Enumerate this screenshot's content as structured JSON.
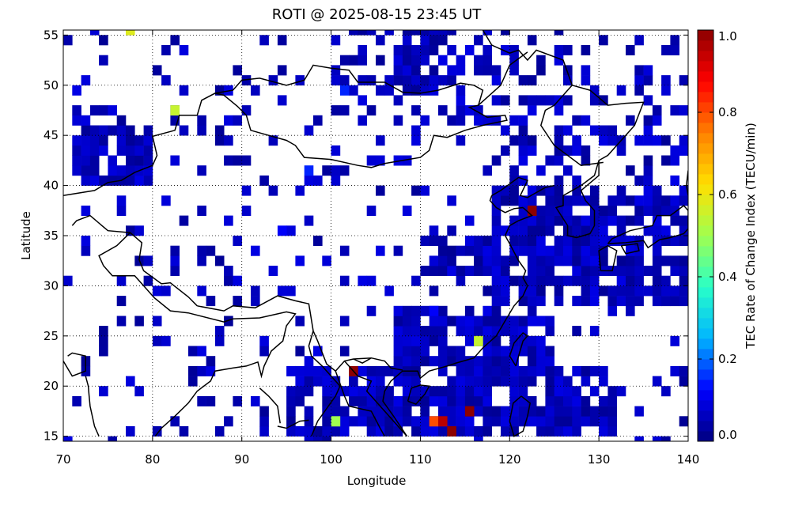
{
  "title": "ROTI @ 2025-08-15 23:45 UT",
  "chart_data": {
    "type": "heatmap",
    "title": "ROTI @ 2025-08-15 23:45 UT",
    "xlabel": "Longitude",
    "ylabel": "Latitude",
    "xlim": [
      70,
      140
    ],
    "ylim": [
      14.5,
      55.5
    ],
    "xticks": [
      70,
      80,
      90,
      100,
      110,
      120,
      130,
      140
    ],
    "yticks": [
      15,
      20,
      25,
      30,
      35,
      40,
      45,
      50,
      55
    ],
    "grid": true,
    "cell_size_deg": 1,
    "colorbar": {
      "label": "TEC Rate of Change Index (TECU/min)",
      "range": [
        0.0,
        1.0
      ],
      "ticks": [
        "0.0",
        "0.2",
        "0.4",
        "0.6",
        "0.8",
        "1.0"
      ],
      "colormap": "rainbow",
      "placement": "right"
    },
    "colormap_stops": [
      "#00007f",
      "#0000ff",
      "#00b4ff",
      "#28ffc8",
      "#a0ff50",
      "#ffe000",
      "#ff8000",
      "#ff0000",
      "#8c0000"
    ],
    "coastline_color": "#000000",
    "background_value_regions": [
      {
        "lon": [
          95,
          132
        ],
        "lat": [
          15,
          22
        ],
        "value": 0.04
      },
      {
        "lon": [
          107,
          125
        ],
        "lat": [
          22,
          28
        ],
        "value": 0.04
      },
      {
        "lon": [
          118,
          140
        ],
        "lat": [
          28,
          40
        ],
        "value": 0.03
      },
      {
        "lon": [
          71,
          80
        ],
        "lat": [
          40,
          46
        ],
        "value": 0.03
      },
      {
        "lon": [
          110,
          120
        ],
        "lat": [
          31,
          35
        ],
        "value": 0.04
      }
    ],
    "notable_cells": [
      {
        "lon": 77.5,
        "lat": 55,
        "value": 0.58
      },
      {
        "lon": 82.5,
        "lat": 47.5,
        "value": 0.55
      },
      {
        "lon": 122.5,
        "lat": 37.5,
        "value": 1.0
      },
      {
        "lon": 116.5,
        "lat": 24.5,
        "value": 0.55
      },
      {
        "lon": 102.5,
        "lat": 21.5,
        "value": 1.0
      },
      {
        "lon": 100.5,
        "lat": 16,
        "value": 0.5
      },
      {
        "lon": 111.5,
        "lat": 16,
        "value": 0.8
      },
      {
        "lon": 112.5,
        "lat": 16,
        "value": 0.95
      },
      {
        "lon": 113.5,
        "lat": 15,
        "value": 1.0
      },
      {
        "lon": 115.5,
        "lat": 17,
        "value": 1.0
      },
      {
        "lon": 97.5,
        "lat": 41.5,
        "value": 0.15
      },
      {
        "lon": 94.5,
        "lat": 35.5,
        "value": 0.12
      },
      {
        "lon": 111.5,
        "lat": 27.5,
        "value": 0.12
      },
      {
        "lon": 101,
        "lat": 49,
        "value": 0.15
      }
    ]
  }
}
